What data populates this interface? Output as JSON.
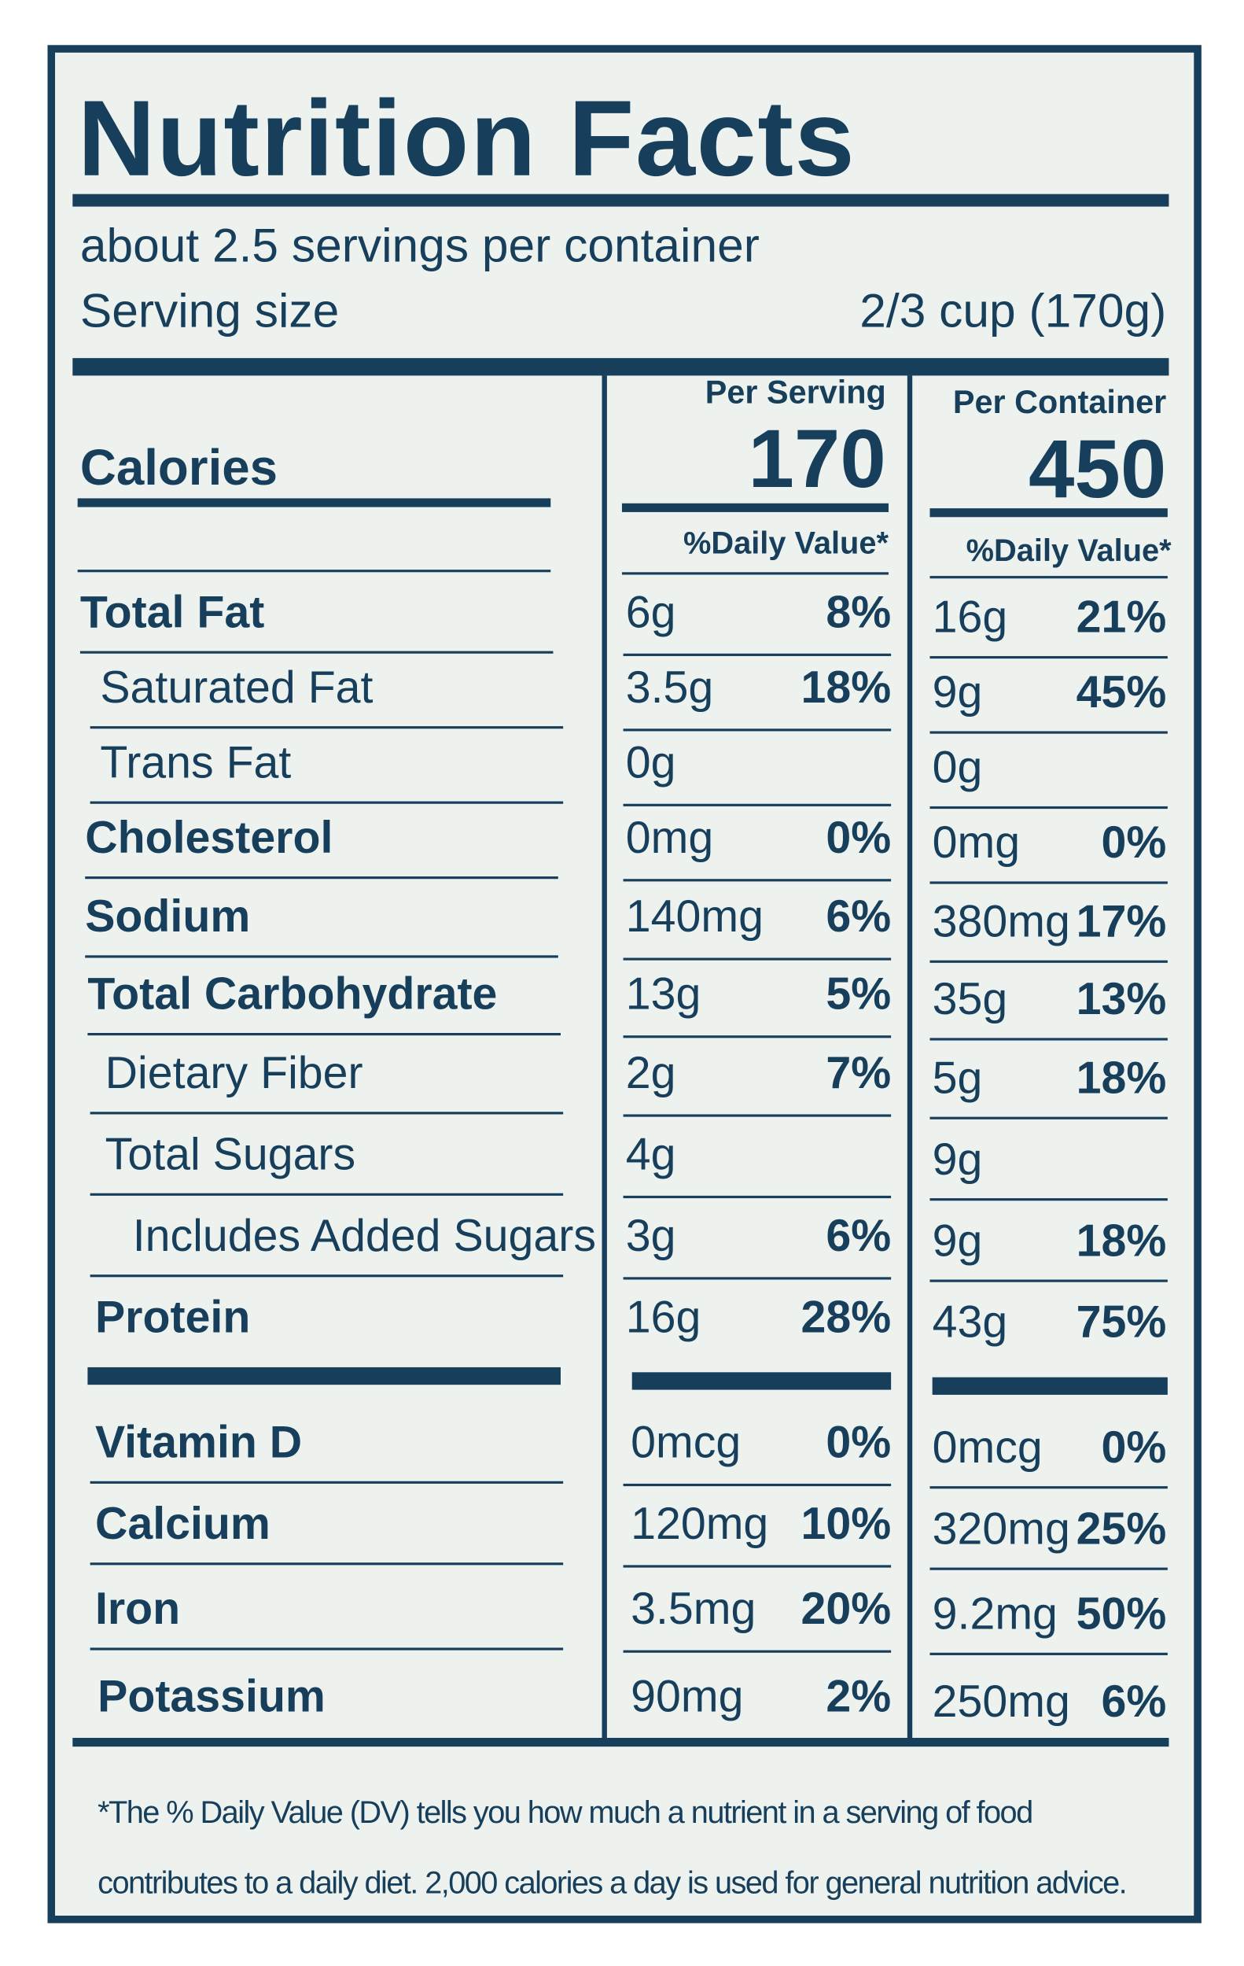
{
  "title": "Nutrition Facts",
  "servings": "about 2.5 servings per container",
  "serving_size_label": "Serving size",
  "serving_size_value": "2/3 cup (170g)",
  "per_serving_header": "Per Serving",
  "per_container_header": "Per Container",
  "calories_label": "Calories",
  "calories_per_serving": "170",
  "calories_per_container": "450",
  "dv_header_serving": "%Daily Value*",
  "dv_header_container": "%Daily Value*",
  "rows": [
    {
      "name": "Total Fat",
      "serving_amount": "6g",
      "serving_dv": "8%",
      "container_amount": "16g",
      "container_dv": "21%"
    },
    {
      "name": "Saturated Fat",
      "serving_amount": "3.5g",
      "serving_dv": "18%",
      "container_amount": "9g",
      "container_dv": "45%"
    },
    {
      "name": "Trans Fat",
      "serving_amount": "0g",
      "container_amount": "0g"
    },
    {
      "name": "Cholesterol",
      "serving_amount": "0mg",
      "serving_dv": "0%",
      "container_amount": "0mg",
      "container_dv": "0%"
    },
    {
      "name": "Sodium",
      "serving_amount": "140mg",
      "serving_dv": "6%",
      "container_amount": "380mg",
      "container_dv": "17%"
    },
    {
      "name": "Total Carbohydrate",
      "serving_amount": "13g",
      "serving_dv": "5%",
      "container_amount": "35g",
      "container_dv": "13%"
    },
    {
      "name": "Dietary Fiber",
      "serving_amount": "2g",
      "serving_dv": "7%",
      "container_amount": "5g",
      "container_dv": "18%"
    },
    {
      "name": "Total Sugars",
      "serving_amount": "4g",
      "container_amount": "9g"
    },
    {
      "name": "Includes Added Sugars",
      "serving_amount": "3g",
      "serving_dv": "6%",
      "container_amount": "9g",
      "container_dv": "18%"
    },
    {
      "name": "Protein",
      "serving_amount": "16g",
      "serving_dv": "28%",
      "container_amount": "43g",
      "container_dv": "75%"
    },
    {
      "name": "Vitamin D",
      "serving_amount": "0mcg",
      "serving_dv": "0%",
      "container_amount": "0mcg",
      "container_dv": "0%"
    },
    {
      "name": "Calcium",
      "serving_amount": "120mg",
      "serving_dv": "10%",
      "container_amount": "320mg",
      "container_dv": "25%"
    },
    {
      "name": "Iron",
      "serving_amount": "3.5mg",
      "serving_dv": "20%",
      "container_amount": "9.2mg",
      "container_dv": "50%"
    },
    {
      "name": "Potassium",
      "serving_amount": "90mg",
      "serving_dv": "2%",
      "container_amount": "250mg",
      "container_dv": "6%"
    }
  ],
  "footnote": "*The % Daily Value (DV) tells you how much a nutrient in a serving of food contributes to a daily diet. 2,000 calories a day is used for general nutrition advice."
}
